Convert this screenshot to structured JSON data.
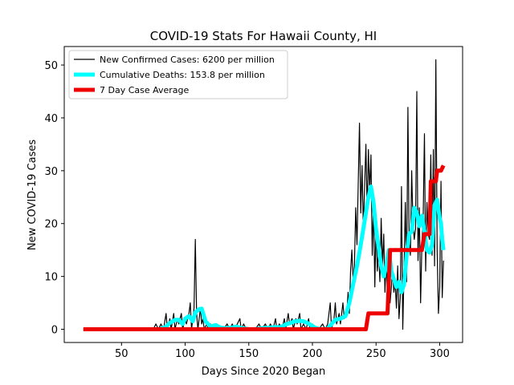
{
  "chart_data": {
    "type": "line",
    "title": "COVID-19 Stats For Hawaii County, HI",
    "xlabel": "Days Since 2020 Began",
    "ylabel": "New COVID-19 Cases",
    "xlim": [
      5,
      318
    ],
    "ylim": [
      -2.5,
      53.5
    ],
    "xticks": [
      50,
      100,
      150,
      200,
      250,
      300
    ],
    "yticks": [
      0,
      10,
      20,
      30,
      40,
      50
    ],
    "grid": false,
    "legend_position": "top-left",
    "series": [
      {
        "name": "New Confirmed Cases: 6200 per million",
        "color": "#000000",
        "points": [
          [
            20,
            0
          ],
          [
            30,
            0
          ],
          [
            40,
            0
          ],
          [
            50,
            0
          ],
          [
            60,
            0
          ],
          [
            70,
            0
          ],
          [
            75,
            0
          ],
          [
            77,
            1
          ],
          [
            79,
            0
          ],
          [
            81,
            1
          ],
          [
            83,
            0
          ],
          [
            85,
            3
          ],
          [
            86,
            0
          ],
          [
            88,
            2
          ],
          [
            89,
            0
          ],
          [
            91,
            3
          ],
          [
            92,
            0
          ],
          [
            94,
            2
          ],
          [
            95,
            1
          ],
          [
            97,
            3
          ],
          [
            98,
            0
          ],
          [
            100,
            2
          ],
          [
            101,
            1
          ],
          [
            103,
            3
          ],
          [
            104,
            5
          ],
          [
            105,
            0
          ],
          [
            106,
            2
          ],
          [
            107,
            4
          ],
          [
            108,
            17
          ],
          [
            109,
            3
          ],
          [
            110,
            0
          ],
          [
            111,
            2
          ],
          [
            112,
            4
          ],
          [
            113,
            1
          ],
          [
            114,
            2
          ],
          [
            115,
            0
          ],
          [
            117,
            1
          ],
          [
            118,
            0
          ],
          [
            120,
            1
          ],
          [
            122,
            0
          ],
          [
            125,
            1
          ],
          [
            127,
            0
          ],
          [
            130,
            0
          ],
          [
            133,
            1
          ],
          [
            135,
            0
          ],
          [
            137,
            1
          ],
          [
            139,
            0
          ],
          [
            141,
            1
          ],
          [
            143,
            2
          ],
          [
            144,
            0
          ],
          [
            146,
            1
          ],
          [
            148,
            0
          ],
          [
            150,
            0
          ],
          [
            155,
            0
          ],
          [
            158,
            1
          ],
          [
            160,
            0
          ],
          [
            163,
            1
          ],
          [
            165,
            0
          ],
          [
            167,
            1
          ],
          [
            169,
            0
          ],
          [
            171,
            2
          ],
          [
            172,
            0
          ],
          [
            174,
            1
          ],
          [
            176,
            0
          ],
          [
            178,
            2
          ],
          [
            179,
            0
          ],
          [
            181,
            3
          ],
          [
            182,
            1
          ],
          [
            184,
            2
          ],
          [
            185,
            0
          ],
          [
            187,
            2
          ],
          [
            188,
            1
          ],
          [
            190,
            3
          ],
          [
            191,
            0
          ],
          [
            193,
            1
          ],
          [
            195,
            0
          ],
          [
            197,
            2
          ],
          [
            198,
            0
          ],
          [
            200,
            1
          ],
          [
            202,
            0
          ],
          [
            205,
            0
          ],
          [
            208,
            1
          ],
          [
            210,
            0
          ],
          [
            212,
            1
          ],
          [
            214,
            5
          ],
          [
            215,
            0
          ],
          [
            217,
            2
          ],
          [
            218,
            5
          ],
          [
            219,
            1
          ],
          [
            221,
            3
          ],
          [
            222,
            1
          ],
          [
            224,
            5
          ],
          [
            225,
            2
          ],
          [
            227,
            3
          ],
          [
            228,
            7
          ],
          [
            229,
            3
          ],
          [
            230,
            11
          ],
          [
            231,
            15
          ],
          [
            232,
            9
          ],
          [
            233,
            12
          ],
          [
            234,
            23
          ],
          [
            235,
            16
          ],
          [
            236,
            28
          ],
          [
            237,
            39
          ],
          [
            238,
            22
          ],
          [
            239,
            31
          ],
          [
            240,
            19
          ],
          [
            241,
            27
          ],
          [
            242,
            35
          ],
          [
            243,
            22
          ],
          [
            244,
            34
          ],
          [
            245,
            26
          ],
          [
            246,
            33
          ],
          [
            247,
            14
          ],
          [
            248,
            24
          ],
          [
            249,
            8
          ],
          [
            250,
            20
          ],
          [
            251,
            11
          ],
          [
            252,
            15
          ],
          [
            253,
            9
          ],
          [
            254,
            21
          ],
          [
            255,
            12
          ],
          [
            256,
            18
          ],
          [
            257,
            7
          ],
          [
            258,
            13
          ],
          [
            259,
            6
          ],
          [
            260,
            10
          ],
          [
            261,
            5
          ],
          [
            262,
            8
          ],
          [
            263,
            11
          ],
          [
            264,
            7
          ],
          [
            265,
            9
          ],
          [
            266,
            4
          ],
          [
            267,
            12
          ],
          [
            268,
            2
          ],
          [
            269,
            6
          ],
          [
            270,
            27
          ],
          [
            271,
            0
          ],
          [
            272,
            11
          ],
          [
            273,
            24
          ],
          [
            274,
            9
          ],
          [
            275,
            42
          ],
          [
            276,
            17
          ],
          [
            277,
            14
          ],
          [
            278,
            30
          ],
          [
            279,
            20
          ],
          [
            280,
            17
          ],
          [
            281,
            19
          ],
          [
            282,
            45
          ],
          [
            283,
            13
          ],
          [
            284,
            23
          ],
          [
            285,
            5
          ],
          [
            286,
            16
          ],
          [
            287,
            21
          ],
          [
            288,
            37
          ],
          [
            289,
            11
          ],
          [
            290,
            24
          ],
          [
            291,
            18
          ],
          [
            292,
            17
          ],
          [
            293,
            33
          ],
          [
            294,
            14
          ],
          [
            295,
            34
          ],
          [
            296,
            12
          ],
          [
            297,
            51
          ],
          [
            298,
            15
          ],
          [
            299,
            3
          ],
          [
            300,
            8
          ],
          [
            301,
            28
          ],
          [
            302,
            6
          ],
          [
            303,
            13
          ]
        ]
      },
      {
        "name": "Cumulative Deaths: 153.8 per million",
        "color": "#00ffff",
        "points": [
          [
            80,
            0
          ],
          [
            85,
            0.5
          ],
          [
            88,
            1.2
          ],
          [
            92,
            1.8
          ],
          [
            95,
            1.8
          ],
          [
            98,
            1.0
          ],
          [
            100,
            2.0
          ],
          [
            103,
            2.5
          ],
          [
            106,
            1.5
          ],
          [
            108,
            3.2
          ],
          [
            111,
            3.8
          ],
          [
            113,
            3.9
          ],
          [
            116,
            1.5
          ],
          [
            120,
            0.5
          ],
          [
            124,
            0.8
          ],
          [
            128,
            0.3
          ],
          [
            132,
            0.2
          ],
          [
            136,
            0.3
          ],
          [
            140,
            0.5
          ],
          [
            145,
            0.2
          ],
          [
            150,
            0.0
          ],
          [
            155,
            0.0
          ],
          [
            160,
            0.2
          ],
          [
            165,
            0.3
          ],
          [
            170,
            0.4
          ],
          [
            175,
            0.4
          ],
          [
            180,
            1.0
          ],
          [
            183,
            1.2
          ],
          [
            186,
            1.5
          ],
          [
            190,
            1.6
          ],
          [
            193,
            1.5
          ],
          [
            196,
            1.2
          ],
          [
            199,
            0.8
          ],
          [
            202,
            0.3
          ],
          [
            205,
            0.1
          ],
          [
            208,
            0.0
          ],
          [
            212,
            0.1
          ],
          [
            215,
            1.0
          ],
          [
            218,
            1.8
          ],
          [
            222,
            2.0
          ],
          [
            226,
            2.5
          ],
          [
            229,
            5.0
          ],
          [
            232,
            8.5
          ],
          [
            235,
            12.0
          ],
          [
            238,
            16.0
          ],
          [
            241,
            20.5
          ],
          [
            244,
            25.0
          ],
          [
            246,
            27.0
          ],
          [
            248,
            24.0
          ],
          [
            250,
            19.0
          ],
          [
            252,
            15.5
          ],
          [
            254,
            12.0
          ],
          [
            256,
            10.0
          ],
          [
            258,
            12.0
          ],
          [
            260,
            15.0
          ],
          [
            262,
            11.0
          ],
          [
            264,
            9.5
          ],
          [
            266,
            8.0
          ],
          [
            268,
            9.0
          ],
          [
            270,
            7.0
          ],
          [
            272,
            8.5
          ],
          [
            274,
            14.0
          ],
          [
            276,
            18.0
          ],
          [
            278,
            18.5
          ],
          [
            280,
            23.0
          ],
          [
            282,
            22.0
          ],
          [
            284,
            19.5
          ],
          [
            286,
            21.5
          ],
          [
            288,
            18.5
          ],
          [
            290,
            15.0
          ],
          [
            292,
            14.5
          ],
          [
            294,
            16.0
          ],
          [
            296,
            23.5
          ],
          [
            298,
            24.5
          ],
          [
            300,
            21.0
          ],
          [
            301,
            20.0
          ],
          [
            302,
            17.0
          ],
          [
            303,
            15.0
          ]
        ]
      },
      {
        "name": "7 Day Case Average",
        "color": "#ee0000",
        "points": [
          [
            20,
            0
          ],
          [
            242,
            0
          ],
          [
            244,
            3
          ],
          [
            259,
            3
          ],
          [
            261,
            15
          ],
          [
            286,
            15
          ],
          [
            288,
            18
          ],
          [
            292,
            18
          ],
          [
            293,
            28
          ],
          [
            297,
            28
          ],
          [
            298,
            30
          ],
          [
            301,
            30
          ],
          [
            303,
            31
          ]
        ]
      }
    ]
  }
}
